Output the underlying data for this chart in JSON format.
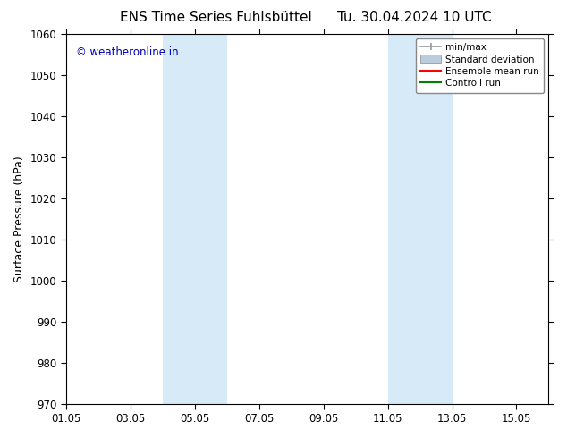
{
  "title_left": "ENS Time Series Fuhlsbüttel",
  "title_right": "Tu. 30.04.2024 10 UTC",
  "ylabel": "Surface Pressure (hPa)",
  "ylim": [
    970,
    1060
  ],
  "yticks": [
    970,
    980,
    990,
    1000,
    1010,
    1020,
    1030,
    1040,
    1050,
    1060
  ],
  "x_start": "2024-05-01",
  "x_end": "2024-05-16",
  "xtick_labels": [
    "01.05",
    "03.05",
    "05.05",
    "07.05",
    "09.05",
    "11.05",
    "13.05",
    "15.05"
  ],
  "xtick_dates": [
    "2024-05-01",
    "2024-05-03",
    "2024-05-05",
    "2024-05-07",
    "2024-05-09",
    "2024-05-11",
    "2024-05-13",
    "2024-05-15"
  ],
  "shaded_regions": [
    {
      "x0": "2024-05-04",
      "x1": "2024-05-06"
    },
    {
      "x0": "2024-05-11",
      "x1": "2024-05-13"
    }
  ],
  "shade_color": "#d6eaf8",
  "watermark_text": "© weatheronline.in",
  "watermark_color": "#0000bb",
  "legend_labels": [
    "min/max",
    "Standard deviation",
    "Ensemble mean run",
    "Controll run"
  ],
  "legend_line_colors": [
    "#999999",
    "#bbccdd",
    "#ff0000",
    "#008000"
  ],
  "bg_color": "#ffffff",
  "border_color": "#000000",
  "title_fontsize": 11,
  "axis_label_fontsize": 9,
  "tick_fontsize": 8.5,
  "watermark_fontsize": 8.5
}
